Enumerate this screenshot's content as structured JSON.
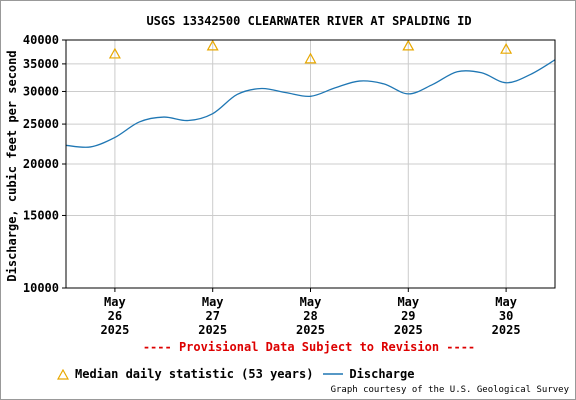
{
  "chart_data": {
    "type": "line",
    "title": "USGS 13342500 CLEARWATER RIVER AT SPALDING ID",
    "ylabel": "Discharge, cubic feet per second",
    "xlabel": "",
    "y_scale": "log",
    "ylim": [
      10000,
      40000
    ],
    "y_ticks": [
      10000,
      15000,
      20000,
      25000,
      30000,
      35000,
      40000
    ],
    "y_tick_labels": [
      "10000",
      "15000",
      "20000",
      "25000",
      "30000",
      "35000",
      "40000"
    ],
    "x_tick_labels": [
      [
        "May",
        "26",
        "2025"
      ],
      [
        "May",
        "27",
        "2025"
      ],
      [
        "May",
        "28",
        "2025"
      ],
      [
        "May",
        "29",
        "2025"
      ],
      [
        "May",
        "30",
        "2025"
      ]
    ],
    "xlim_days": [
      "2025-05-25T12:00",
      "2025-05-30T12:00"
    ],
    "grid": true,
    "series": [
      {
        "name": "Discharge",
        "color": "#1f77b4",
        "x": [
          "2025-05-25 12:00",
          "2025-05-25 18:00",
          "2025-05-26 00:00",
          "2025-05-26 06:00",
          "2025-05-26 12:00",
          "2025-05-26 18:00",
          "2025-05-27 00:00",
          "2025-05-27 06:00",
          "2025-05-27 12:00",
          "2025-05-27 18:00",
          "2025-05-28 00:00",
          "2025-05-28 06:00",
          "2025-05-28 12:00",
          "2025-05-28 18:00",
          "2025-05-29 00:00",
          "2025-05-29 06:00",
          "2025-05-29 12:00",
          "2025-05-29 18:00",
          "2025-05-30 00:00",
          "2025-05-30 06:00"
        ],
        "values": [
          22200,
          22000,
          23200,
          25300,
          26000,
          25500,
          26500,
          29500,
          30500,
          29800,
          29200,
          30600,
          31800,
          31300,
          29600,
          31200,
          33500,
          33300,
          31500,
          33000
        ]
      },
      {
        "name": "Median daily statistic (53 years)",
        "color": "#e8a800",
        "marker": "triangle",
        "x": [
          "2025-05-26 00:00",
          "2025-05-27 00:00",
          "2025-05-28 00:00",
          "2025-05-29 00:00",
          "2025-05-30 00:00"
        ],
        "values": [
          37000,
          38700,
          36000,
          38700,
          38000
        ]
      }
    ],
    "discharge_last": {
      "x": "2025-05-30 12:00",
      "value": 35800
    }
  },
  "annotation": "---- Provisional Data Subject to Revision ----",
  "legend": {
    "median_label": "Median daily statistic (53 years)",
    "discharge_label": "Discharge"
  },
  "courtesy": "Graph courtesy of the U.S. Geological Survey"
}
